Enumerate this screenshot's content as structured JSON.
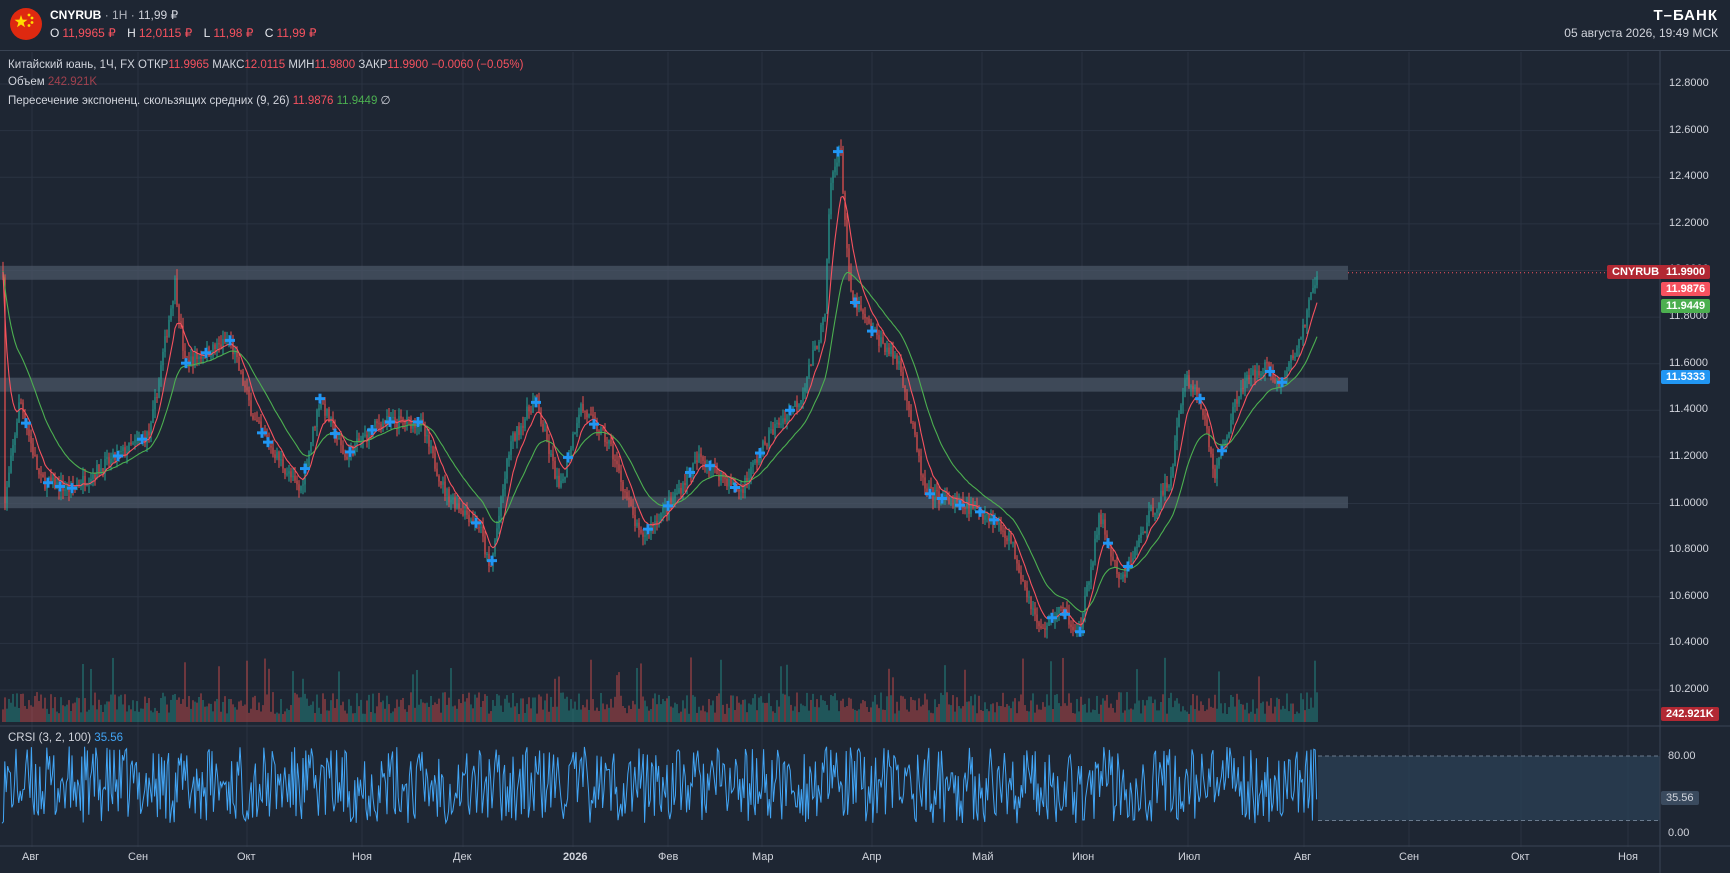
{
  "header": {
    "symbol": "CNYRUB",
    "interval": "1H",
    "last": "11,99 ₽",
    "ohlc": [
      {
        "k": "O",
        "v": "11,9965 ₽"
      },
      {
        "k": "H",
        "v": "12,0115 ₽"
      },
      {
        "k": "L",
        "v": "11,98 ₽"
      },
      {
        "k": "C",
        "v": "11,99 ₽"
      }
    ],
    "brand": "Т–БАНК",
    "timestamp": "05 августа 2026, 19:49 МСК",
    "flag_icon": "china-flag-icon"
  },
  "legend": {
    "line1": {
      "name": "Китайский юань, 1Ч, FX",
      "open_k": "ОТКР",
      "open_v": "11.9965",
      "high_k": "МАКС",
      "high_v": "12.0115",
      "low_k": "МИН",
      "low_v": "11.9800",
      "close_k": "ЗАКР",
      "close_v": "11.9900",
      "change": "−0.0060 (−0.05%)"
    },
    "line2": {
      "name": "Объем",
      "value": "242.921K"
    },
    "line3": {
      "name": "Пересечение экспоненц. скользящих средних (9, 26)",
      "v1": "11.9876",
      "v2": "11.9449",
      "icon": "∅"
    },
    "crsi": {
      "name": "CRSI (3, 2, 100)",
      "value": "35.56"
    }
  },
  "price_axis": [
    "12.8000",
    "12.6000",
    "12.4000",
    "12.2000",
    "12.0000",
    "11.8000",
    "11.6000",
    "11.4000",
    "11.2000",
    "11.0000",
    "10.8000",
    "10.6000",
    "10.4000",
    "10.2000"
  ],
  "crsi_axis": [
    "80.00",
    "35.56",
    "0.00"
  ],
  "time_axis": [
    "Авг",
    "Сен",
    "Окт",
    "Ноя",
    "Дек",
    "2026",
    "Фев",
    "Мар",
    "Апр",
    "Май",
    "Июн",
    "Июл",
    "Авг",
    "Сен",
    "Окт",
    "Ноя"
  ],
  "tags": {
    "symbol_tag": "CNYRUB",
    "price_tag": "11.9900",
    "ema9_tag": "11.9876",
    "ema26_tag": "11.9449",
    "level_tag": "11.5333",
    "volume_tag": "242.921K",
    "crsi_tag": "35.56"
  },
  "colors": {
    "up": "#26a69a",
    "down": "#ef5350",
    "ema_fast": "#f7525f",
    "ema_slow": "#4caf50",
    "crsi": "#42a5f5",
    "zone": "#4a5566"
  },
  "chart_data": {
    "type": "line",
    "title": "CNYRUB 1H",
    "ylim": [
      10.2,
      12.8
    ],
    "zones": [
      [
        11.96,
        12.02
      ],
      [
        11.48,
        11.54
      ],
      [
        10.98,
        11.03
      ]
    ],
    "x": [
      "Авг",
      "Сен",
      "Окт",
      "Ноя",
      "Дек",
      "2026",
      "Фев",
      "Мар",
      "Апр",
      "Май",
      "Июн",
      "Июл",
      "Авг"
    ],
    "series": [
      {
        "name": "CNYRUB",
        "values": [
          10.95,
          11.15,
          11.45,
          11.4,
          11.15,
          11.02,
          10.95,
          11.25,
          11.85,
          11.05,
          10.52,
          11.52,
          11.99
        ]
      }
    ],
    "crsi_current": 35.56,
    "crsi_band": [
      13,
      80
    ]
  }
}
